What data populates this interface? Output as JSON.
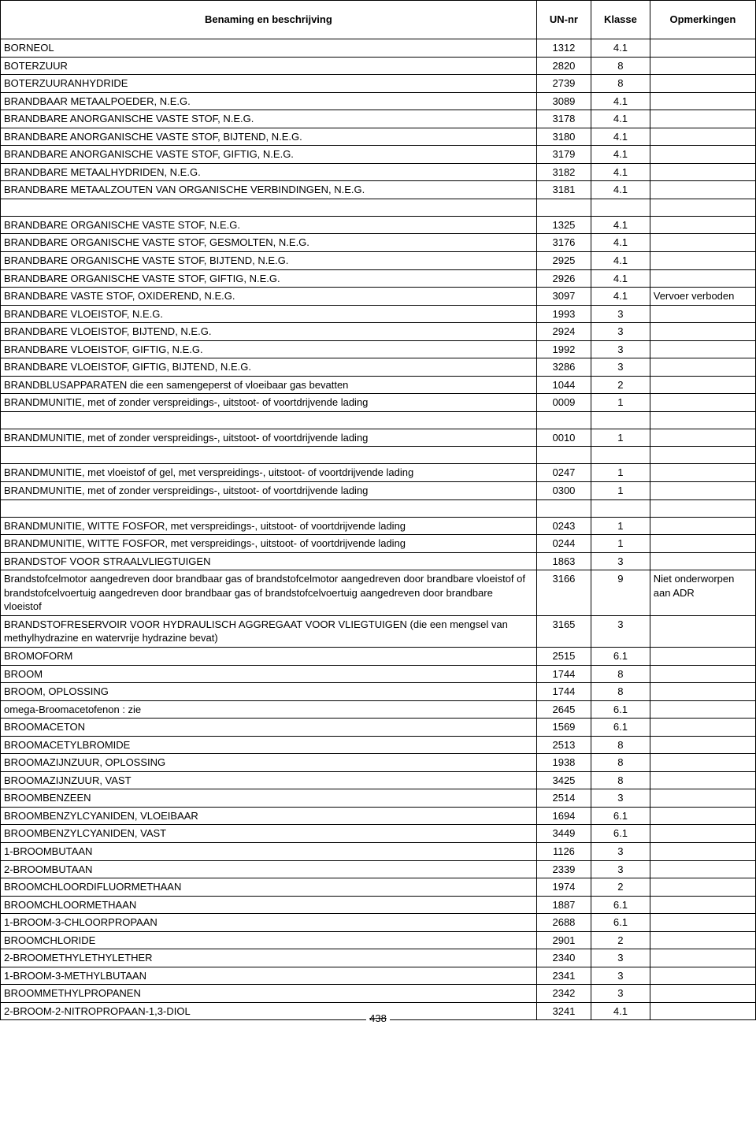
{
  "headers": {
    "name": "Benaming en beschrijving",
    "un": "UN-nr",
    "klasse": "Klasse",
    "opm": "Opmerkingen"
  },
  "page_number": "438",
  "rows": [
    {
      "name": "BORNEOL",
      "un": "1312",
      "klasse": "4.1",
      "opm": ""
    },
    {
      "name": "BOTERZUUR",
      "un": "2820",
      "klasse": "8",
      "opm": ""
    },
    {
      "name": "BOTERZUURANHYDRIDE",
      "un": "2739",
      "klasse": "8",
      "opm": ""
    },
    {
      "name": "BRANDBAAR METAALPOEDER, N.E.G.",
      "un": "3089",
      "klasse": "4.1",
      "opm": ""
    },
    {
      "name": "BRANDBARE ANORGANISCHE VASTE STOF, N.E.G.",
      "un": "3178",
      "klasse": "4.1",
      "opm": ""
    },
    {
      "name": "BRANDBARE ANORGANISCHE VASTE STOF, BIJTEND, N.E.G.",
      "un": "3180",
      "klasse": "4.1",
      "opm": ""
    },
    {
      "name": "BRANDBARE ANORGANISCHE VASTE STOF, GIFTIG, N.E.G.",
      "un": "3179",
      "klasse": "4.1",
      "opm": ""
    },
    {
      "name": "BRANDBARE METAALHYDRIDEN, N.E.G.",
      "un": "3182",
      "klasse": "4.1",
      "opm": ""
    },
    {
      "name": "BRANDBARE METAALZOUTEN VAN ORGANISCHE VERBINDINGEN, N.E.G.",
      "un": "3181",
      "klasse": "4.1",
      "opm": ""
    },
    {
      "empty": true
    },
    {
      "name": "BRANDBARE ORGANISCHE VASTE STOF, N.E.G.",
      "un": "1325",
      "klasse": "4.1",
      "opm": ""
    },
    {
      "name": "BRANDBARE ORGANISCHE VASTE STOF, GESMOLTEN, N.E.G.",
      "un": "3176",
      "klasse": "4.1",
      "opm": ""
    },
    {
      "name": "BRANDBARE ORGANISCHE VASTE STOF, BIJTEND, N.E.G.",
      "un": "2925",
      "klasse": "4.1",
      "opm": ""
    },
    {
      "name": "BRANDBARE ORGANISCHE VASTE STOF, GIFTIG, N.E.G.",
      "un": "2926",
      "klasse": "4.1",
      "opm": ""
    },
    {
      "name": "BRANDBARE VASTE STOF, OXIDEREND, N.E.G.",
      "un": "3097",
      "klasse": "4.1",
      "opm": "Vervoer verboden"
    },
    {
      "name": "BRANDBARE VLOEISTOF, N.E.G.",
      "un": "1993",
      "klasse": "3",
      "opm": ""
    },
    {
      "name": "BRANDBARE VLOEISTOF, BIJTEND, N.E.G.",
      "un": "2924",
      "klasse": "3",
      "opm": ""
    },
    {
      "name": "BRANDBARE VLOEISTOF, GIFTIG, N.E.G.",
      "un": "1992",
      "klasse": "3",
      "opm": ""
    },
    {
      "name": "BRANDBARE VLOEISTOF, GIFTIG, BIJTEND, N.E.G.",
      "un": "3286",
      "klasse": "3",
      "opm": ""
    },
    {
      "name": "BRANDBLUSAPPARATEN die een samengeperst of vloeibaar gas bevatten",
      "un": "1044",
      "klasse": "2",
      "opm": ""
    },
    {
      "name": "BRANDMUNITIE, met of zonder verspreidings-, uitstoot- of voortdrijvende lading",
      "un": "0009",
      "klasse": "1",
      "opm": ""
    },
    {
      "empty": true
    },
    {
      "name": "BRANDMUNITIE, met of zonder verspreidings-, uitstoot- of voortdrijvende lading",
      "un": "0010",
      "klasse": "1",
      "opm": ""
    },
    {
      "empty": true
    },
    {
      "name": "BRANDMUNITIE, met vloeistof of gel, met verspreidings-, uitstoot- of voortdrijvende lading",
      "un": "0247",
      "klasse": "1",
      "opm": ""
    },
    {
      "name": "BRANDMUNITIE, met of zonder verspreidings-, uitstoot- of  voortdrijvende lading",
      "un": "0300",
      "klasse": "1",
      "opm": ""
    },
    {
      "empty": true
    },
    {
      "name": "BRANDMUNITIE, WITTE FOSFOR, met verspreidings-, uitstoot- of voortdrijvende lading",
      "un": "0243",
      "klasse": "1",
      "opm": ""
    },
    {
      "name": "BRANDMUNITIE, WITTE FOSFOR, met verspreidings-, uitstoot- of voortdrijvende lading",
      "un": "0244",
      "klasse": "1",
      "opm": ""
    },
    {
      "name": "BRANDSTOF VOOR STRAALVLIEGTUIGEN",
      "un": "1863",
      "klasse": "3",
      "opm": ""
    },
    {
      "name": "Brandstofcelmotor aangedreven door brandbaar gas of brandstofcelmotor aangedreven door brandbare vloeistof of brandstofcelvoertuig aangedreven door brandbaar gas of brandstofcelvoertuig aangedreven door brandbare vloeistof",
      "un": "3166",
      "klasse": "9",
      "opm": "Niet onderworpen aan ADR"
    },
    {
      "name": "BRANDSTOFRESERVOIR VOOR HYDRAULISCH AGGREGAAT VOOR VLIEGTUIGEN (die een mengsel van methylhydrazine en watervrije hydrazine bevat)",
      "un": "3165",
      "klasse": "3",
      "opm": ""
    },
    {
      "name": "BROMOFORM",
      "un": "2515",
      "klasse": "6.1",
      "opm": ""
    },
    {
      "name": "BROOM",
      "un": "1744",
      "klasse": "8",
      "opm": ""
    },
    {
      "name": "BROOM, OPLOSSING",
      "un": "1744",
      "klasse": "8",
      "opm": ""
    },
    {
      "name": "omega-Broomacetofenon : zie",
      "un": "2645",
      "klasse": "6.1",
      "opm": ""
    },
    {
      "name": "BROOMACETON",
      "un": "1569",
      "klasse": "6.1",
      "opm": ""
    },
    {
      "name": "BROOMACETYLBROMIDE",
      "un": "2513",
      "klasse": "8",
      "opm": ""
    },
    {
      "name": "BROOMAZIJNZUUR, OPLOSSING",
      "un": "1938",
      "klasse": "8",
      "opm": ""
    },
    {
      "name": "BROOMAZIJNZUUR, VAST",
      "un": "3425",
      "klasse": "8",
      "opm": ""
    },
    {
      "name": "BROOMBENZEEN",
      "un": "2514",
      "klasse": "3",
      "opm": ""
    },
    {
      "name": "BROOMBENZYLCYANIDEN, VLOEIBAAR",
      "un": "1694",
      "klasse": "6.1",
      "opm": ""
    },
    {
      "name": "BROOMBENZYLCYANIDEN, VAST",
      "un": "3449",
      "klasse": "6.1",
      "opm": ""
    },
    {
      "name": "1-BROOMBUTAAN",
      "un": "1126",
      "klasse": "3",
      "opm": ""
    },
    {
      "name": "2-BROOMBUTAAN",
      "un": "2339",
      "klasse": "3",
      "opm": ""
    },
    {
      "name": "BROOMCHLOORDIFLUORMETHAAN",
      "un": "1974",
      "klasse": "2",
      "opm": ""
    },
    {
      "name": "BROOMCHLOORMETHAAN",
      "un": "1887",
      "klasse": "6.1",
      "opm": ""
    },
    {
      "name": "1-BROOM-3-CHLOORPROPAAN",
      "un": "2688",
      "klasse": "6.1",
      "opm": ""
    },
    {
      "name": "BROOMCHLORIDE",
      "un": "2901",
      "klasse": "2",
      "opm": ""
    },
    {
      "name": "2-BROOMETHYLETHYLETHER",
      "un": "2340",
      "klasse": "3",
      "opm": ""
    },
    {
      "name": "1-BROOM-3-METHYLBUTAAN",
      "un": "2341",
      "klasse": "3",
      "opm": ""
    },
    {
      "name": "BROOMMETHYLPROPANEN",
      "un": "2342",
      "klasse": "3",
      "opm": ""
    },
    {
      "name": "2-BROOM-2-NITROPROPAAN-1,3-DIOL",
      "un": "3241",
      "klasse": "4.1",
      "opm": ""
    }
  ]
}
